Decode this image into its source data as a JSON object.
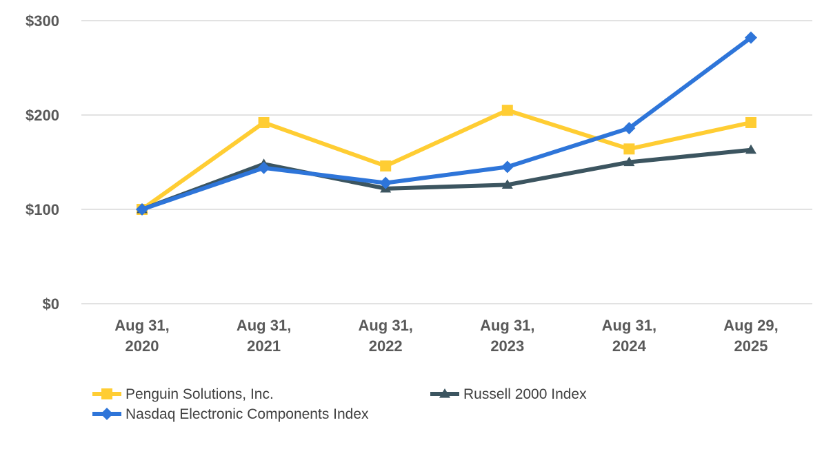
{
  "chart_data": {
    "type": "line",
    "title": "",
    "xlabel": "",
    "ylabel": "",
    "categories": [
      [
        "Aug 31,",
        "2020"
      ],
      [
        "Aug 31,",
        "2021"
      ],
      [
        "Aug 31,",
        "2022"
      ],
      [
        "Aug 31,",
        "2023"
      ],
      [
        "Aug 31,",
        "2024"
      ],
      [
        "Aug 29,",
        "2025"
      ]
    ],
    "ylim": [
      0,
      300
    ],
    "yticks": [
      0,
      100,
      200,
      300
    ],
    "ytick_labels": [
      "$0",
      "$100",
      "$200",
      "$300"
    ],
    "grid": true,
    "legend_position": "bottom",
    "series": [
      {
        "name": "Penguin Solutions, Inc.",
        "marker": "square",
        "color": "#FFCD33",
        "values": [
          100,
          192,
          146,
          205,
          164,
          192
        ]
      },
      {
        "name": "Nasdaq Electronic Components Index",
        "marker": "diamond",
        "color": "#2E75D9",
        "values": [
          100,
          144,
          128,
          145,
          186,
          282
        ]
      },
      {
        "name": "Russell 2000 Index",
        "marker": "triangle",
        "color": "#3C5560",
        "values": [
          100,
          148,
          122,
          126,
          150,
          163
        ]
      }
    ],
    "draw_order": [
      0,
      2,
      1
    ]
  }
}
